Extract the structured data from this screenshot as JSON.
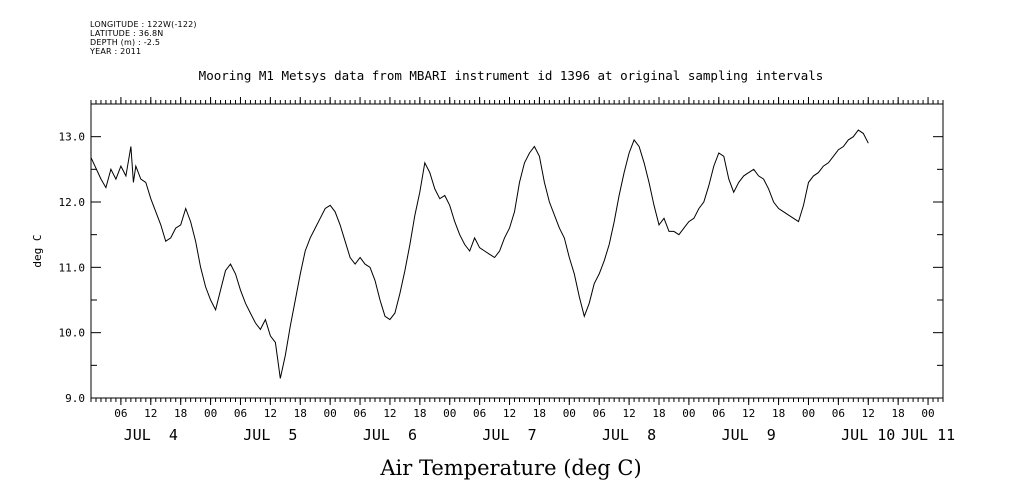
{
  "meta_lines": [
    "LONGITUDE : 122W(-122)",
    "LATITUDE : 36.8N",
    "DEPTH (m) : -2.5",
    "YEAR : 2011"
  ],
  "chart_data": {
    "type": "line",
    "title": "Mooring M1 Metsys data from MBARI instrument id 1396 at original sampling intervals",
    "xlabel": "Air Temperature (deg C)",
    "ylabel": "deg C",
    "ylim": [
      9.0,
      13.5
    ],
    "xlim_hours": [
      0,
      171
    ],
    "yticks": [
      "9.0",
      "10.0",
      "11.0",
      "12.0",
      "13.0"
    ],
    "hour_labels": [
      "06",
      "12",
      "18",
      "00",
      "06",
      "12",
      "18",
      "00",
      "06",
      "12",
      "18",
      "00",
      "06",
      "12",
      "18",
      "00",
      "06",
      "12",
      "18",
      "00",
      "06",
      "12",
      "18",
      "00",
      "06",
      "12",
      "18",
      "00"
    ],
    "day_labels": [
      "JUL  4",
      "JUL  5",
      "JUL  6",
      "JUL  7",
      "JUL  8",
      "JUL  9",
      "JUL 10",
      "JUL 11"
    ],
    "series": [
      {
        "points": [
          [
            0,
            12.68
          ],
          [
            2,
            12.35
          ],
          [
            3,
            12.22
          ],
          [
            4,
            12.5
          ],
          [
            5,
            12.35
          ],
          [
            6,
            12.55
          ],
          [
            7,
            12.4
          ],
          [
            8,
            12.85
          ],
          [
            8.5,
            12.3
          ],
          [
            9,
            12.55
          ],
          [
            10,
            12.35
          ],
          [
            11,
            12.3
          ],
          [
            12,
            12.05
          ],
          [
            13,
            11.85
          ],
          [
            14,
            11.65
          ],
          [
            15,
            11.4
          ],
          [
            16,
            11.45
          ],
          [
            17,
            11.6
          ],
          [
            18,
            11.65
          ],
          [
            19,
            11.9
          ],
          [
            20,
            11.7
          ],
          [
            21,
            11.4
          ],
          [
            22,
            11.0
          ],
          [
            23,
            10.7
          ],
          [
            24,
            10.5
          ],
          [
            25,
            10.35
          ],
          [
            26,
            10.65
          ],
          [
            27,
            10.95
          ],
          [
            28,
            11.05
          ],
          [
            29,
            10.9
          ],
          [
            30,
            10.65
          ],
          [
            31,
            10.45
          ],
          [
            32,
            10.3
          ],
          [
            33,
            10.15
          ],
          [
            34,
            10.05
          ],
          [
            35,
            10.2
          ],
          [
            36,
            9.95
          ],
          [
            37,
            9.85
          ],
          [
            38,
            9.3
          ],
          [
            39,
            9.65
          ],
          [
            40,
            10.1
          ],
          [
            41,
            10.5
          ],
          [
            42,
            10.9
          ],
          [
            43,
            11.25
          ],
          [
            44,
            11.45
          ],
          [
            45,
            11.6
          ],
          [
            46,
            11.75
          ],
          [
            47,
            11.9
          ],
          [
            48,
            11.95
          ],
          [
            49,
            11.85
          ],
          [
            50,
            11.65
          ],
          [
            51,
            11.4
          ],
          [
            52,
            11.15
          ],
          [
            53,
            11.05
          ],
          [
            54,
            11.15
          ],
          [
            55,
            11.05
          ],
          [
            56,
            11.0
          ],
          [
            57,
            10.8
          ],
          [
            58,
            10.5
          ],
          [
            59,
            10.25
          ],
          [
            60,
            10.2
          ],
          [
            61,
            10.3
          ],
          [
            62,
            10.6
          ],
          [
            63,
            10.95
          ],
          [
            64,
            11.35
          ],
          [
            65,
            11.8
          ],
          [
            66,
            12.15
          ],
          [
            67,
            12.6
          ],
          [
            68,
            12.45
          ],
          [
            69,
            12.2
          ],
          [
            70,
            12.05
          ],
          [
            71,
            12.1
          ],
          [
            72,
            11.95
          ],
          [
            73,
            11.7
          ],
          [
            74,
            11.5
          ],
          [
            75,
            11.35
          ],
          [
            76,
            11.25
          ],
          [
            77,
            11.45
          ],
          [
            78,
            11.3
          ],
          [
            79,
            11.25
          ],
          [
            80,
            11.2
          ],
          [
            81,
            11.15
          ],
          [
            82,
            11.25
          ],
          [
            83,
            11.45
          ],
          [
            84,
            11.6
          ],
          [
            85,
            11.85
          ],
          [
            86,
            12.3
          ],
          [
            87,
            12.6
          ],
          [
            88,
            12.75
          ],
          [
            89,
            12.85
          ],
          [
            90,
            12.7
          ],
          [
            91,
            12.3
          ],
          [
            92,
            12.0
          ],
          [
            93,
            11.8
          ],
          [
            94,
            11.6
          ],
          [
            95,
            11.45
          ],
          [
            96,
            11.15
          ],
          [
            97,
            10.9
          ],
          [
            98,
            10.55
          ],
          [
            99,
            10.25
          ],
          [
            100,
            10.45
          ],
          [
            101,
            10.75
          ],
          [
            102,
            10.9
          ],
          [
            103,
            11.1
          ],
          [
            104,
            11.35
          ],
          [
            105,
            11.7
          ],
          [
            106,
            12.1
          ],
          [
            107,
            12.45
          ],
          [
            108,
            12.75
          ],
          [
            109,
            12.95
          ],
          [
            110,
            12.85
          ],
          [
            111,
            12.6
          ],
          [
            112,
            12.3
          ],
          [
            113,
            11.95
          ],
          [
            114,
            11.65
          ],
          [
            115,
            11.75
          ],
          [
            116,
            11.55
          ],
          [
            117,
            11.55
          ],
          [
            118,
            11.5
          ],
          [
            119,
            11.6
          ],
          [
            120,
            11.7
          ],
          [
            121,
            11.75
          ],
          [
            122,
            11.9
          ],
          [
            123,
            12.0
          ],
          [
            124,
            12.25
          ],
          [
            125,
            12.55
          ],
          [
            126,
            12.75
          ],
          [
            127,
            12.7
          ],
          [
            128,
            12.35
          ],
          [
            129,
            12.15
          ],
          [
            130,
            12.3
          ],
          [
            131,
            12.4
          ],
          [
            132,
            12.45
          ],
          [
            133,
            12.5
          ],
          [
            134,
            12.4
          ],
          [
            135,
            12.35
          ],
          [
            136,
            12.2
          ],
          [
            137,
            12.0
          ],
          [
            138,
            11.9
          ],
          [
            139,
            11.85
          ],
          [
            140,
            11.8
          ],
          [
            141,
            11.75
          ],
          [
            142,
            11.7
          ],
          [
            143,
            11.95
          ],
          [
            144,
            12.3
          ],
          [
            145,
            12.4
          ],
          [
            146,
            12.45
          ],
          [
            147,
            12.55
          ],
          [
            148,
            12.6
          ],
          [
            149,
            12.7
          ],
          [
            150,
            12.8
          ],
          [
            151,
            12.85
          ],
          [
            152,
            12.95
          ],
          [
            153,
            13.0
          ],
          [
            154,
            13.1
          ],
          [
            155,
            13.05
          ],
          [
            156,
            12.9
          ]
        ]
      }
    ]
  }
}
